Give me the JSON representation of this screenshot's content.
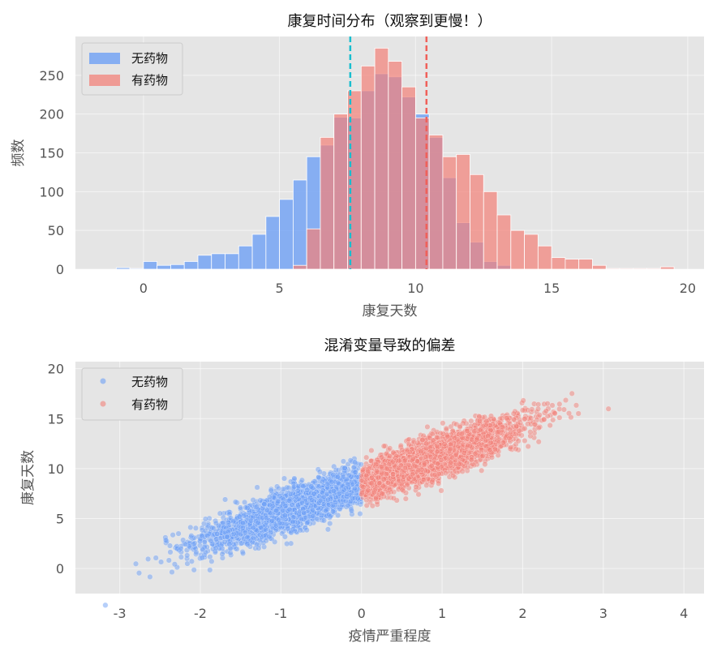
{
  "chart_data": [
    {
      "type": "histogram",
      "title": "康复时间分布（观察到更慢！）",
      "xlabel": "康复天数",
      "ylabel": "频数",
      "xlim": [
        -2.5,
        20.6
      ],
      "ylim": [
        0,
        300
      ],
      "xticks": [
        0,
        5,
        10,
        15,
        20
      ],
      "yticks": [
        0,
        50,
        100,
        150,
        200,
        250
      ],
      "grid": true,
      "legend_position": "top-left",
      "series": [
        {
          "name": "无药物",
          "color": "#6ea0f5",
          "bin_width": 0.5,
          "bin_start": -1.0,
          "counts": [
            2,
            1,
            10,
            5,
            6,
            10,
            18,
            20,
            20,
            30,
            45,
            68,
            90,
            115,
            145,
            160,
            196,
            195,
            230,
            252,
            248,
            222,
            200,
            170,
            118,
            60,
            35,
            10,
            5,
            0,
            0
          ]
        },
        {
          "name": "有药物",
          "color": "#f2827a",
          "bin_width": 0.5,
          "bin_start": 5.5,
          "counts": [
            5,
            52,
            170,
            200,
            230,
            262,
            285,
            268,
            235,
            195,
            173,
            145,
            148,
            122,
            100,
            70,
            50,
            45,
            30,
            15,
            13,
            13,
            5,
            1,
            1,
            1,
            1,
            3
          ]
        }
      ],
      "reference_lines": [
        {
          "x": 7.6,
          "color": "#17becf",
          "style": "dashed"
        },
        {
          "x": 10.4,
          "color": "#f0605a",
          "style": "dashed"
        }
      ]
    },
    {
      "type": "scatter",
      "title": "混淆变量导致的偏差",
      "xlabel": "疫情严重程度",
      "ylabel": "康复天数",
      "xlim": [
        -3.55,
        4.25
      ],
      "ylim": [
        -2.5,
        20.7
      ],
      "xticks": [
        -3,
        -2,
        -1,
        0,
        1,
        2,
        3,
        4
      ],
      "yticks": [
        0,
        5,
        10,
        15,
        20
      ],
      "grid": true,
      "legend_position": "top-left",
      "relationship": {
        "slope": 2.9,
        "intercept": 8.5,
        "noise_sd": 1.05
      },
      "series": [
        {
          "name": "无药物",
          "color": "#6ea0f5",
          "x_range": [
            -3.3,
            0
          ],
          "n_points": 2500
        },
        {
          "name": "有药物",
          "color": "#f2827a",
          "x_range": [
            0,
            3.95
          ],
          "n_points": 2500
        }
      ]
    }
  ]
}
